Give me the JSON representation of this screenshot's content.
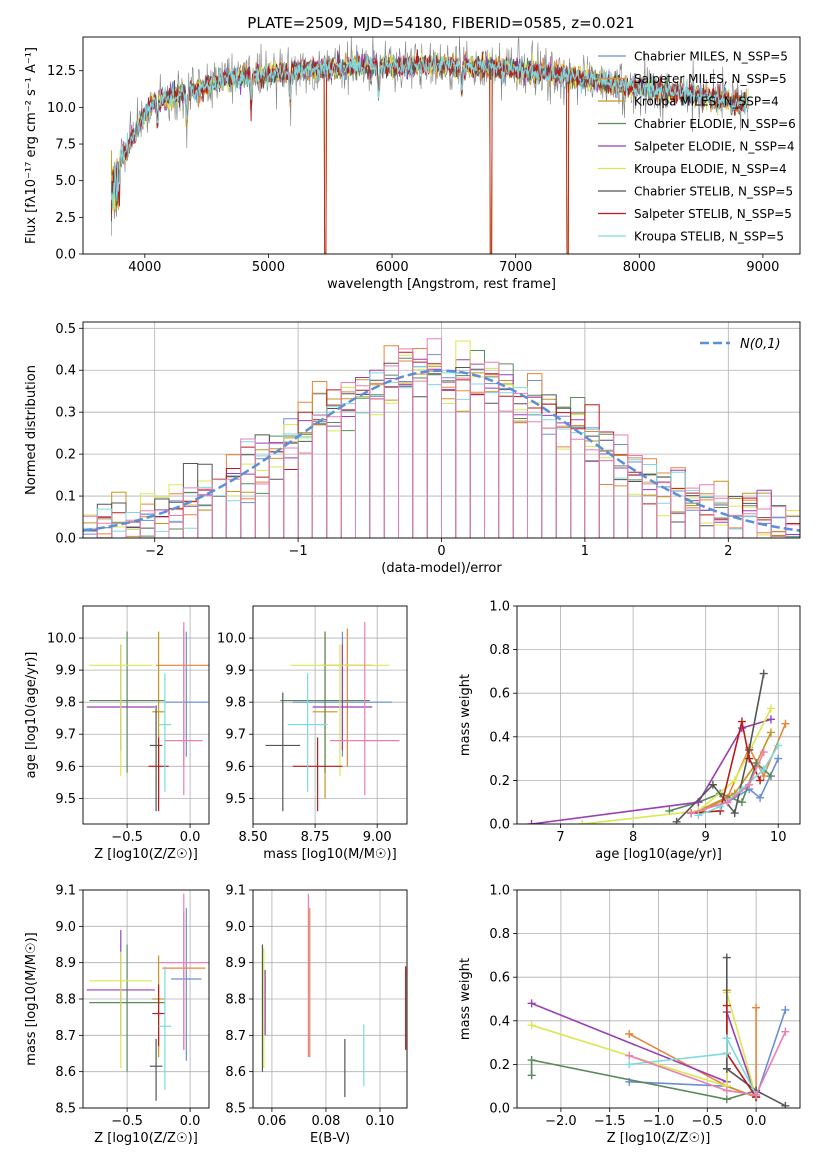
{
  "figure_title": "PLATE=2509, MJD=54180, FIBERID=0585, z=0.021",
  "chart_data": [
    {
      "id": "spectrum",
      "type": "line",
      "title": "PLATE=2509, MJD=54180, FIBERID=0585, z=0.021",
      "xlabel": "wavelength [Angstrom, rest frame]",
      "ylabel": "Flux [fλ10⁻¹⁷ erg cm⁻² s⁻¹ A⁻¹]",
      "xlim": [
        3500,
        9300
      ],
      "ylim": [
        0,
        14.8
      ],
      "xticks": [
        4000,
        5000,
        6000,
        7000,
        8000,
        9000
      ],
      "yticks": [
        0,
        2.5,
        5.0,
        7.5,
        10.0,
        12.5
      ],
      "grid": false,
      "legend_position": "top-right",
      "continuum": {
        "x": [
          3750,
          3850,
          3950,
          4050,
          4150,
          4250,
          4350,
          4450,
          4550,
          4650,
          4750,
          4850,
          5000,
          5200,
          5400,
          5600,
          5800,
          6000,
          6200,
          6400,
          6600,
          6800,
          7000,
          7200,
          7400,
          7600,
          7800,
          8000,
          8200,
          8400,
          8600,
          8800
        ],
        "y": [
          6.0,
          7.0,
          8.8,
          10.2,
          10.5,
          10.8,
          11.0,
          11.3,
          11.6,
          11.9,
          12.0,
          12.1,
          12.3,
          12.5,
          12.6,
          12.7,
          12.8,
          12.8,
          12.9,
          12.9,
          12.8,
          12.7,
          12.6,
          12.4,
          12.2,
          11.9,
          11.6,
          11.3,
          11.1,
          10.9,
          10.6,
          10.3
        ]
      },
      "masked_pixels": [
        5460,
        6800,
        7420
      ],
      "series": [
        {
          "name": "Chabrier MILES, N_SSP=5",
          "color": "#6a8fd6"
        },
        {
          "name": "Salpeter MILES, N_SSP=5",
          "color": "#e8853a"
        },
        {
          "name": "Kroupa MILES, N_SSP=4",
          "color": "#c8961e"
        },
        {
          "name": "Chabrier ELODIE, N_SSP=6",
          "color": "#5a8a5a"
        },
        {
          "name": "Salpeter ELODIE, N_SSP=4",
          "color": "#9b3fb5"
        },
        {
          "name": "Kroupa ELODIE, N_SSP=4",
          "color": "#d9e852"
        },
        {
          "name": "Chabrier STELIB, N_SSP=5",
          "color": "#555555"
        },
        {
          "name": "Salpeter STELIB, N_SSP=5",
          "color": "#b81c1c"
        },
        {
          "name": "Kroupa STELIB, N_SSP=5",
          "color": "#7ed9e0"
        }
      ],
      "data_color": "#808080"
    },
    {
      "id": "residuals",
      "type": "bar",
      "xlabel": "(data-model)/error",
      "ylabel": "Normed distribution",
      "xlim": [
        -2.5,
        2.5
      ],
      "ylim": [
        0,
        0.515
      ],
      "xticks": [
        -2,
        -1,
        0,
        1,
        2
      ],
      "yticks": [
        0.0,
        0.1,
        0.2,
        0.3,
        0.4,
        0.5
      ],
      "grid": true,
      "legend_position": "top-right",
      "bin_width": 0.1,
      "gaussian": {
        "name": "N(0,1)",
        "mean": 0,
        "sigma": 1,
        "color": "#5b8fd8"
      }
    },
    {
      "id": "age_vs_Z",
      "type": "scatter",
      "xlabel": "Z [log10(Z/Z☉)]",
      "ylabel": "age  [log10(age/yr)]",
      "xlim": [
        -0.85,
        0.15
      ],
      "ylim": [
        9.42,
        10.1
      ],
      "xticks": [
        -0.5,
        0.0
      ],
      "yticks": [
        9.5,
        9.6,
        9.7,
        9.8,
        9.9,
        10.0
      ],
      "grid": true,
      "points": [
        {
          "x": -0.03,
          "y": 9.8,
          "xerr": 0.17,
          "ylo": 9.63,
          "yhi": 10.02,
          "color": "#6a8fd6"
        },
        {
          "x": -0.05,
          "y": 9.915,
          "xerr": 0.22,
          "ylo": 9.6,
          "yhi": 10.03,
          "color": "#e8853a"
        },
        {
          "x": -0.25,
          "y": 9.77,
          "xerr": 0.05,
          "ylo": 9.5,
          "yhi": 10.02,
          "color": "#c8961e"
        },
        {
          "x": -0.5,
          "y": 9.805,
          "xerr": 0.3,
          "ylo": 9.58,
          "yhi": 10.02,
          "color": "#5a8a5a"
        },
        {
          "x": -0.55,
          "y": 9.785,
          "xerr": 0.27,
          "ylo": 9.65,
          "yhi": 9.98,
          "color": "#9b3fb5"
        },
        {
          "x": -0.55,
          "y": 9.915,
          "xerr": 0.25,
          "ylo": 9.57,
          "yhi": 9.98,
          "color": "#d9e852"
        },
        {
          "x": -0.27,
          "y": 9.665,
          "xerr": 0.05,
          "ylo": 9.46,
          "yhi": 9.79,
          "color": "#555555"
        },
        {
          "x": -0.25,
          "y": 9.6,
          "xerr": 0.08,
          "ylo": 9.46,
          "yhi": 9.69,
          "color": "#b81c1c"
        },
        {
          "x": -0.2,
          "y": 9.73,
          "xerr": 0.05,
          "ylo": 9.52,
          "yhi": 9.89,
          "color": "#7ed9e0"
        },
        {
          "x": -0.05,
          "y": 9.68,
          "xerr": 0.15,
          "ylo": 9.51,
          "yhi": 10.05,
          "color": "#e97fb5"
        }
      ]
    },
    {
      "id": "age_vs_mass",
      "type": "scatter",
      "xlabel": "mass [log10(M/M☉)]",
      "xlim": [
        8.5,
        9.12
      ],
      "ylim": [
        9.42,
        10.1
      ],
      "xticks": [
        8.5,
        8.75,
        9.0
      ],
      "yticks": [
        9.5,
        9.6,
        9.7,
        9.8,
        9.9,
        10.0
      ],
      "grid": true,
      "points": [
        {
          "x": 8.86,
          "y": 9.8,
          "xerr": 0.2,
          "ylo": 9.63,
          "yhi": 10.02,
          "color": "#6a8fd6"
        },
        {
          "x": 8.88,
          "y": 9.915,
          "xerr": 0.1,
          "ylo": 9.6,
          "yhi": 10.03,
          "color": "#e8853a"
        },
        {
          "x": 8.79,
          "y": 9.77,
          "xerr": 0.05,
          "ylo": 9.5,
          "yhi": 10.02,
          "color": "#c8961e"
        },
        {
          "x": 8.79,
          "y": 9.805,
          "xerr": 0.18,
          "ylo": 9.58,
          "yhi": 10.02,
          "color": "#5a8a5a"
        },
        {
          "x": 8.86,
          "y": 9.785,
          "xerr": 0.12,
          "ylo": 9.65,
          "yhi": 9.98,
          "color": "#9b3fb5"
        },
        {
          "x": 8.85,
          "y": 9.915,
          "xerr": 0.2,
          "ylo": 9.57,
          "yhi": 9.98,
          "color": "#d9e852"
        },
        {
          "x": 8.62,
          "y": 9.665,
          "xerr": 0.07,
          "ylo": 9.46,
          "yhi": 9.83,
          "color": "#555555"
        },
        {
          "x": 8.76,
          "y": 9.6,
          "xerr": 0.1,
          "ylo": 9.46,
          "yhi": 9.69,
          "color": "#b81c1c"
        },
        {
          "x": 8.72,
          "y": 9.73,
          "xerr": 0.08,
          "ylo": 9.52,
          "yhi": 9.89,
          "color": "#7ed9e0"
        },
        {
          "x": 8.95,
          "y": 9.68,
          "xerr": 0.14,
          "ylo": 9.51,
          "yhi": 10.05,
          "color": "#e97fb5"
        }
      ]
    },
    {
      "id": "weight_vs_age",
      "type": "line",
      "xlabel": "age  [log10(age/yr)]",
      "ylabel": "mass weight",
      "xlim": [
        6.4,
        10.3
      ],
      "ylim": [
        0,
        1.0
      ],
      "xticks": [
        7,
        8,
        9,
        10
      ],
      "yticks": [
        0.0,
        0.2,
        0.4,
        0.6,
        0.8,
        1.0
      ],
      "grid": true,
      "series": [
        {
          "color": "#6a8fd6",
          "x": [
            8.8,
            9.3,
            9.6,
            9.75,
            10.0
          ],
          "y": [
            0.05,
            0.1,
            0.16,
            0.12,
            0.3
          ]
        },
        {
          "color": "#e8853a",
          "x": [
            8.9,
            9.3,
            9.6,
            9.8,
            10.1
          ],
          "y": [
            0.05,
            0.12,
            0.35,
            0.22,
            0.46
          ]
        },
        {
          "color": "#c8961e",
          "x": [
            8.9,
            9.4,
            9.7,
            9.9
          ],
          "y": [
            0.06,
            0.14,
            0.28,
            0.42
          ]
        },
        {
          "color": "#5a8a5a",
          "x": [
            8.5,
            8.9,
            9.2,
            9.5,
            9.7,
            9.9
          ],
          "y": [
            0.06,
            0.1,
            0.14,
            0.1,
            0.28,
            0.22
          ]
        },
        {
          "color": "#9b3fb5",
          "x": [
            6.6,
            8.9,
            9.5,
            9.9
          ],
          "y": [
            0.0,
            0.1,
            0.44,
            0.48
          ]
        },
        {
          "color": "#d9e852",
          "x": [
            7.3,
            8.9,
            9.4,
            9.9
          ],
          "y": [
            0.0,
            0.06,
            0.2,
            0.53
          ]
        },
        {
          "color": "#555555",
          "x": [
            8.6,
            9.1,
            9.4,
            9.6,
            9.8
          ],
          "y": [
            0.01,
            0.18,
            0.05,
            0.34,
            0.69
          ]
        },
        {
          "color": "#b81c1c",
          "x": [
            8.8,
            9.2,
            9.5,
            9.6,
            9.75
          ],
          "y": [
            0.05,
            0.06,
            0.47,
            0.3,
            0.2
          ]
        },
        {
          "color": "#7ed9e0",
          "x": [
            8.9,
            9.2,
            9.5,
            9.8,
            10.0
          ],
          "y": [
            0.04,
            0.08,
            0.16,
            0.25,
            0.36
          ]
        },
        {
          "color": "#e97fb5",
          "x": [
            8.8,
            9.3,
            9.6,
            9.8
          ],
          "y": [
            0.05,
            0.1,
            0.18,
            0.33
          ]
        }
      ]
    },
    {
      "id": "mass_vs_Z",
      "type": "scatter",
      "xlabel": "Z [log10(Z/Z☉)]",
      "ylabel": "mass [log10(M/M☉)]",
      "xlim": [
        -0.85,
        0.15
      ],
      "ylim": [
        8.5,
        9.1
      ],
      "xticks": [
        -0.5,
        0.0
      ],
      "yticks": [
        8.5,
        8.6,
        8.7,
        8.8,
        8.9,
        9.0,
        9.1
      ],
      "grid": true,
      "points": [
        {
          "x": -0.03,
          "y": 8.855,
          "xerr": 0.12,
          "ylo": 8.63,
          "yhi": 9.05,
          "color": "#6a8fd6"
        },
        {
          "x": -0.05,
          "y": 8.885,
          "xerr": 0.17,
          "ylo": 8.66,
          "yhi": 9.04,
          "color": "#e8853a"
        },
        {
          "x": -0.25,
          "y": 8.8,
          "xerr": 0.05,
          "ylo": 8.64,
          "yhi": 8.92,
          "color": "#c8961e"
        },
        {
          "x": -0.5,
          "y": 8.79,
          "xerr": 0.3,
          "ylo": 8.6,
          "yhi": 8.95,
          "color": "#5a8a5a"
        },
        {
          "x": -0.55,
          "y": 8.825,
          "xerr": 0.27,
          "ylo": 8.7,
          "yhi": 8.99,
          "color": "#9b3fb5"
        },
        {
          "x": -0.55,
          "y": 8.85,
          "xerr": 0.25,
          "ylo": 8.61,
          "yhi": 8.93,
          "color": "#d9e852"
        },
        {
          "x": -0.27,
          "y": 8.615,
          "xerr": 0.05,
          "ylo": 8.52,
          "yhi": 8.69,
          "color": "#555555"
        },
        {
          "x": -0.25,
          "y": 8.76,
          "xerr": 0.05,
          "ylo": 8.67,
          "yhi": 8.84,
          "color": "#b81c1c"
        },
        {
          "x": -0.2,
          "y": 8.725,
          "xerr": 0.05,
          "ylo": 8.55,
          "yhi": 8.89,
          "color": "#7ed9e0"
        },
        {
          "x": -0.05,
          "y": 8.9,
          "xerr": 0.2,
          "ylo": 8.66,
          "yhi": 9.09,
          "color": "#e97fb5"
        }
      ]
    },
    {
      "id": "mass_vs_EBV",
      "type": "scatter",
      "xlabel": "E(B-V)",
      "xlim": [
        0.053,
        0.11
      ],
      "ylim": [
        8.5,
        9.1
      ],
      "xticks": [
        0.06,
        0.08,
        0.1
      ],
      "yticks": [
        8.5,
        8.6,
        8.7,
        8.8,
        8.9,
        9.0,
        9.1
      ],
      "grid": true,
      "points": [
        {
          "x": 0.0565,
          "ylo": 8.6,
          "yhi": 8.95,
          "color": "#555555"
        },
        {
          "x": 0.057,
          "ylo": 8.61,
          "yhi": 8.94,
          "color": "#d9e852"
        },
        {
          "x": 0.0575,
          "ylo": 8.7,
          "yhi": 8.88,
          "color": "#9b3fb5"
        },
        {
          "x": 0.0735,
          "ylo": 8.64,
          "yhi": 9.09,
          "color": "#e97fb5"
        },
        {
          "x": 0.074,
          "ylo": 8.64,
          "yhi": 9.05,
          "color": "#e8853a"
        },
        {
          "x": 0.087,
          "ylo": 8.53,
          "yhi": 8.69,
          "color": "#555555"
        },
        {
          "x": 0.094,
          "ylo": 8.56,
          "yhi": 8.73,
          "color": "#7ed9e0"
        },
        {
          "x": 0.1095,
          "ylo": 8.66,
          "yhi": 8.89,
          "color": "#b81c1c"
        }
      ]
    },
    {
      "id": "weight_vs_Z",
      "type": "line",
      "xlabel": "Z [log10(Z/Z☉)]",
      "ylabel": "mass weight",
      "xlim": [
        -2.45,
        0.45
      ],
      "ylim": [
        0,
        1.0
      ],
      "xticks": [
        -2.0,
        -1.5,
        -1.0,
        -0.5,
        0.0
      ],
      "yticks": [
        0.0,
        0.2,
        0.4,
        0.6,
        0.8,
        1.0
      ],
      "grid": true,
      "series": [
        {
          "color": "#6a8fd6",
          "x": [
            -1.3,
            -0.3,
            0.0,
            0.3
          ],
          "y": [
            0.12,
            0.1,
            0.05,
            0.45
          ]
        },
        {
          "color": "#e8853a",
          "x": [
            -1.3,
            -0.3,
            0.0,
            0.0
          ],
          "y": [
            0.34,
            0.1,
            0.05,
            0.46
          ]
        },
        {
          "color": "#c8961e",
          "x": [
            -0.3,
            -0.3,
            0.0
          ],
          "y": [
            0.54,
            0.1,
            0.05
          ]
        },
        {
          "color": "#5a8a5a",
          "x": [
            -2.3,
            -2.3,
            -0.3,
            0.0
          ],
          "y": [
            0.15,
            0.22,
            0.04,
            0.08
          ]
        },
        {
          "color": "#9b3fb5",
          "x": [
            -2.3,
            -0.3,
            -0.3,
            0.0
          ],
          "y": [
            0.48,
            0.12,
            0.44,
            0.05
          ]
        },
        {
          "color": "#d9e852",
          "x": [
            -2.3,
            -0.3,
            -0.3,
            0.0
          ],
          "y": [
            0.38,
            0.1,
            0.53,
            0.05
          ]
        },
        {
          "color": "#555555",
          "x": [
            -0.3,
            -0.3,
            0.0,
            0.3
          ],
          "y": [
            0.69,
            0.18,
            0.08,
            0.01
          ]
        },
        {
          "color": "#b81c1c",
          "x": [
            -0.3,
            -0.3,
            0.0
          ],
          "y": [
            0.47,
            0.25,
            0.05
          ]
        },
        {
          "color": "#7ed9e0",
          "x": [
            -1.3,
            -0.3,
            -0.3,
            0.0
          ],
          "y": [
            0.2,
            0.25,
            0.32,
            0.06
          ]
        },
        {
          "color": "#e97fb5",
          "x": [
            -1.3,
            -0.3,
            0.0,
            0.3
          ],
          "y": [
            0.24,
            0.08,
            0.06,
            0.35
          ]
        }
      ]
    }
  ]
}
